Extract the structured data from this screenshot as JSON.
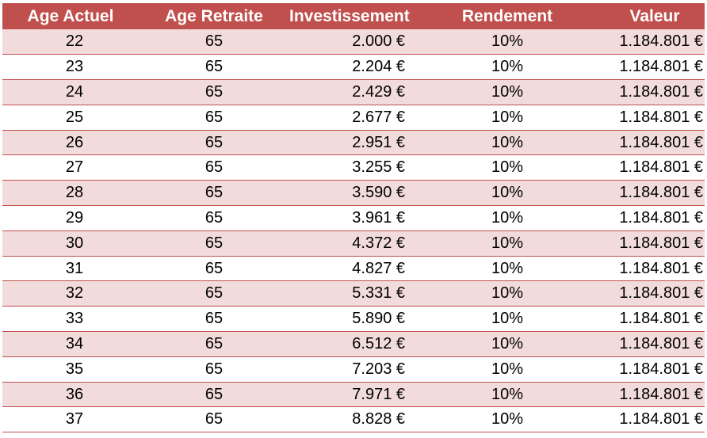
{
  "table": {
    "headers": [
      "Age Actuel",
      "Age Retraite",
      "Investissement",
      "Rendement",
      "Valeur"
    ],
    "rows": [
      [
        "22",
        "65",
        "2.000 €",
        "10%",
        "1.184.801 €"
      ],
      [
        "23",
        "65",
        "2.204 €",
        "10%",
        "1.184.801 €"
      ],
      [
        "24",
        "65",
        "2.429 €",
        "10%",
        "1.184.801 €"
      ],
      [
        "25",
        "65",
        "2.677 €",
        "10%",
        "1.184.801 €"
      ],
      [
        "26",
        "65",
        "2.951 €",
        "10%",
        "1.184.801 €"
      ],
      [
        "27",
        "65",
        "3.255 €",
        "10%",
        "1.184.801 €"
      ],
      [
        "28",
        "65",
        "3.590 €",
        "10%",
        "1.184.801 €"
      ],
      [
        "29",
        "65",
        "3.961 €",
        "10%",
        "1.184.801 €"
      ],
      [
        "30",
        "65",
        "4.372 €",
        "10%",
        "1.184.801 €"
      ],
      [
        "31",
        "65",
        "4.827 €",
        "10%",
        "1.184.801 €"
      ],
      [
        "32",
        "65",
        "5.331 €",
        "10%",
        "1.184.801 €"
      ],
      [
        "33",
        "65",
        "5.890 €",
        "10%",
        "1.184.801 €"
      ],
      [
        "34",
        "65",
        "6.512 €",
        "10%",
        "1.184.801 €"
      ],
      [
        "35",
        "65",
        "7.203 €",
        "10%",
        "1.184.801 €"
      ],
      [
        "36",
        "65",
        "7.971 €",
        "10%",
        "1.184.801 €"
      ],
      [
        "37",
        "65",
        "8.828 €",
        "10%",
        "1.184.801 €"
      ]
    ]
  },
  "colors": {
    "header_bg": "#c0504d",
    "header_text": "#ffffff",
    "band_row": "#f2dcdb",
    "plain_row": "#ffffff",
    "row_border": "#c0504d"
  }
}
